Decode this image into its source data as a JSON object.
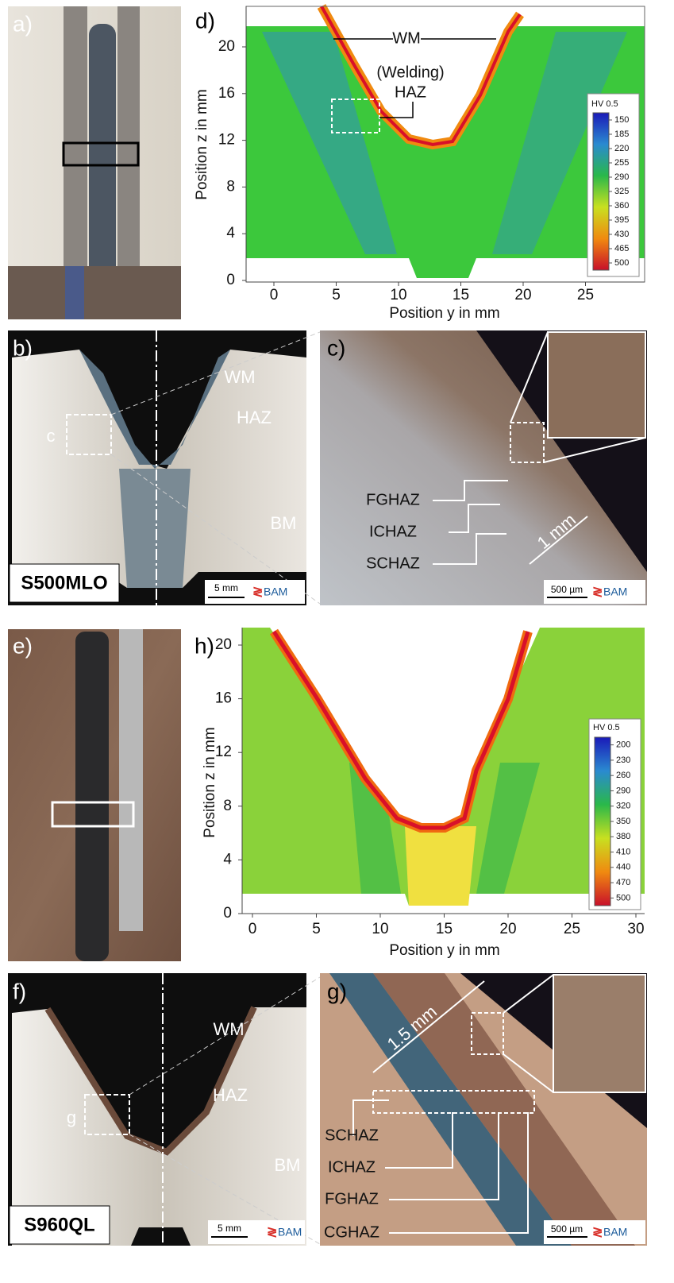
{
  "panels": {
    "a": {
      "label": "a)"
    },
    "d": {
      "label": "d)",
      "y_axis_label": "Position z in mm",
      "x_axis_label": "Position y in mm",
      "yticks": [
        0,
        4,
        8,
        12,
        16,
        20
      ],
      "xticks": [
        0,
        5,
        10,
        15,
        20,
        25
      ],
      "annotations": [
        "WM",
        "(Welding)",
        "HAZ"
      ],
      "colorbar": {
        "title": "HV 0.5",
        "ticks": [
          150,
          185,
          220,
          255,
          290,
          325,
          360,
          395,
          430,
          465,
          500
        ]
      }
    },
    "b": {
      "label": "b)",
      "annotations": [
        "WM",
        "HAZ",
        "BM",
        "c"
      ],
      "steel": "S500MLO",
      "scale_bar": "5 mm",
      "logo": "BAM"
    },
    "c": {
      "label": "c)",
      "annotations": [
        "FGHAZ",
        "ICHAZ",
        "SCHAZ",
        "1 mm"
      ],
      "scale_bar": "500 µm",
      "logo": "BAM"
    },
    "e": {
      "label": "e)"
    },
    "h": {
      "label": "h)",
      "y_axis_label": "Position z in mm",
      "x_axis_label": "Position y in mm",
      "yticks": [
        0,
        4,
        8,
        12,
        16,
        20
      ],
      "xticks": [
        0,
        5,
        10,
        15,
        20,
        25,
        30
      ],
      "colorbar": {
        "title": "HV 0.5",
        "ticks": [
          200,
          230,
          260,
          290,
          320,
          350,
          380,
          410,
          440,
          470,
          500
        ]
      }
    },
    "f": {
      "label": "f)",
      "annotations": [
        "WM",
        "HAZ",
        "BM",
        "g"
      ],
      "steel": "S960QL",
      "scale_bar": "5 mm",
      "logo": "BAM"
    },
    "g": {
      "label": "g)",
      "annotations": [
        "SCHAZ",
        "ICHAZ",
        "FGHAZ",
        "CGHAZ",
        "1.5 mm"
      ],
      "scale_bar": "500 µm",
      "logo": "BAM"
    }
  }
}
